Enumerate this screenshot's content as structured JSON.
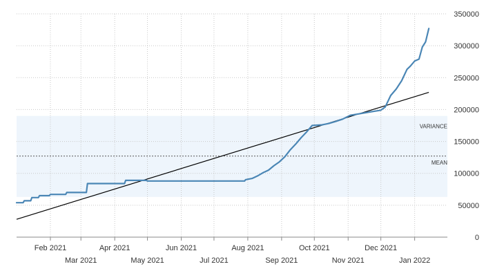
{
  "chart_data": {
    "type": "line",
    "title": "",
    "xlabel": "",
    "ylabel": "",
    "ylim": [
      0,
      350000
    ],
    "xlim": [
      "2021-01-01",
      "2022-01-31"
    ],
    "grid": true,
    "y_axis_position": "right",
    "yticks": [
      0,
      50000,
      100000,
      150000,
      200000,
      250000,
      300000,
      350000
    ],
    "xticks": [
      {
        "date": "2021-02-01",
        "label": "Feb 2021",
        "row": 1
      },
      {
        "date": "2021-03-01",
        "label": "Mar 2021",
        "row": 2
      },
      {
        "date": "2021-04-01",
        "label": "Apr 2021",
        "row": 1
      },
      {
        "date": "2021-05-01",
        "label": "May 2021",
        "row": 2
      },
      {
        "date": "2021-06-01",
        "label": "Jun 2021",
        "row": 1
      },
      {
        "date": "2021-07-01",
        "label": "Jul 2021",
        "row": 2
      },
      {
        "date": "2021-08-01",
        "label": "Aug 2021",
        "row": 1
      },
      {
        "date": "2021-09-01",
        "label": "Sep 2021",
        "row": 2
      },
      {
        "date": "2021-10-01",
        "label": "Oct 2021",
        "row": 1
      },
      {
        "date": "2021-11-01",
        "label": "Nov 2021",
        "row": 2
      },
      {
        "date": "2021-12-01",
        "label": "Dec 2021",
        "row": 1
      },
      {
        "date": "2022-01-01",
        "label": "Jan 2022",
        "row": 2
      }
    ],
    "series": [
      {
        "color": "#4a86b5",
        "points": [
          [
            "2021-01-01",
            54000
          ],
          [
            "2021-01-07",
            54000
          ],
          [
            "2021-01-08",
            57000
          ],
          [
            "2021-01-14",
            57000
          ],
          [
            "2021-01-15",
            62000
          ],
          [
            "2021-01-21",
            62000
          ],
          [
            "2021-01-22",
            65000
          ],
          [
            "2021-01-31",
            65000
          ],
          [
            "2021-02-01",
            67000
          ],
          [
            "2021-02-15",
            67000
          ],
          [
            "2021-02-16",
            70000
          ],
          [
            "2021-03-06",
            70000
          ],
          [
            "2021-03-07",
            84000
          ],
          [
            "2021-04-10",
            84000
          ],
          [
            "2021-04-11",
            89000
          ],
          [
            "2021-04-30",
            89000
          ],
          [
            "2021-05-01",
            88000
          ],
          [
            "2021-07-29",
            88000
          ],
          [
            "2021-07-30",
            90000
          ],
          [
            "2021-08-05",
            92000
          ],
          [
            "2021-08-10",
            96000
          ],
          [
            "2021-08-15",
            101000
          ],
          [
            "2021-08-20",
            105000
          ],
          [
            "2021-08-25",
            112000
          ],
          [
            "2021-08-30",
            118000
          ],
          [
            "2021-09-04",
            126000
          ],
          [
            "2021-09-09",
            137000
          ],
          [
            "2021-09-14",
            146000
          ],
          [
            "2021-09-19",
            156000
          ],
          [
            "2021-09-24",
            165000
          ],
          [
            "2021-09-29",
            175000
          ],
          [
            "2021-10-08",
            176000
          ],
          [
            "2021-10-14",
            178000
          ],
          [
            "2021-10-20",
            181000
          ],
          [
            "2021-10-27",
            185000
          ],
          [
            "2021-11-03",
            191000
          ],
          [
            "2021-11-10",
            193000
          ],
          [
            "2021-11-17",
            195000
          ],
          [
            "2021-11-24",
            197000
          ],
          [
            "2021-12-01",
            199000
          ],
          [
            "2021-12-05",
            204000
          ],
          [
            "2021-12-10",
            222000
          ],
          [
            "2021-12-15",
            232000
          ],
          [
            "2021-12-20",
            245000
          ],
          [
            "2021-12-25",
            263000
          ],
          [
            "2021-12-28",
            268000
          ],
          [
            "2022-01-01",
            276000
          ],
          [
            "2022-01-05",
            279000
          ],
          [
            "2022-01-08",
            298000
          ],
          [
            "2022-01-11",
            306000
          ],
          [
            "2022-01-14",
            327000
          ]
        ]
      }
    ],
    "trend_line": {
      "color": "#000000",
      "start": [
        "2021-01-01",
        28000
      ],
      "end": [
        "2022-01-14",
        227000
      ]
    },
    "mean": {
      "label": "MEAN",
      "value": 127000
    },
    "variance_band": {
      "label": "VARIANCE",
      "low": 63000,
      "high": 190000,
      "color": "#eef5fc"
    }
  }
}
